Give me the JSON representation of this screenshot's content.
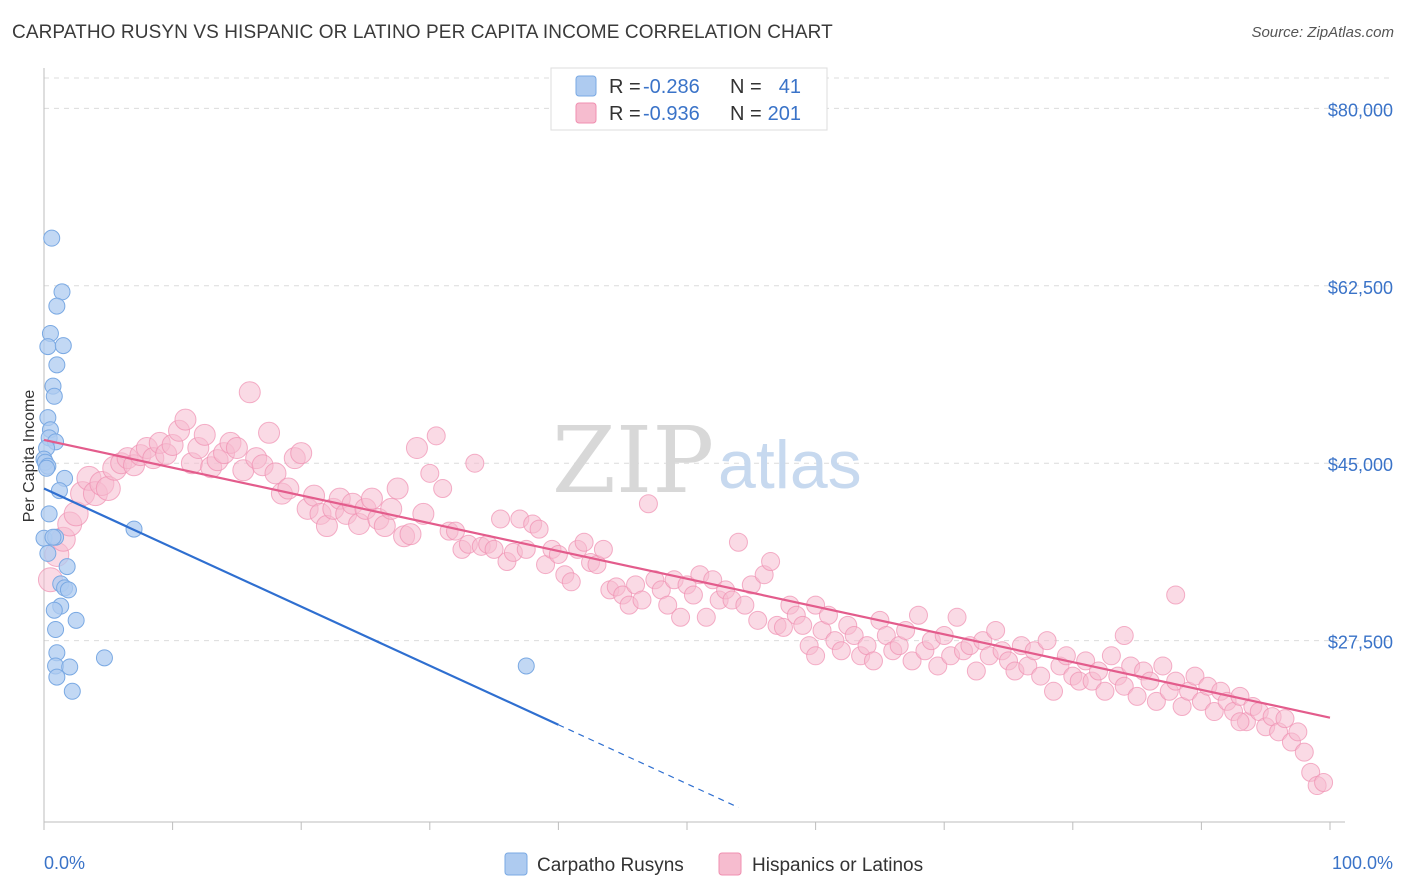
{
  "header": {
    "title": "CARPATHO RUSYN VS HISPANIC OR LATINO PER CAPITA INCOME CORRELATION CHART",
    "source": "Source: ZipAtlas.com"
  },
  "watermark": {
    "zip": "ZIP",
    "atlas": "atlas"
  },
  "legend": {
    "rows": [
      {
        "r_label": "R =",
        "r_value": "-0.286",
        "n_label": "N =",
        "n_value": "41",
        "color": "#aecbf0"
      },
      {
        "r_label": "R =",
        "r_value": "-0.936",
        "n_label": "N =",
        "n_value": "201",
        "color": "#f6bccf"
      }
    ]
  },
  "bottom_legend": [
    {
      "label": "Carpatho Rusyns",
      "color": "#aecbf0"
    },
    {
      "label": "Hispanics or Latinos",
      "color": "#f6bccf"
    }
  ],
  "chart_data": {
    "type": "scatter",
    "xlabel": "",
    "ylabel": "Per Capita Income",
    "xlim": [
      0,
      100
    ],
    "ylim": [
      10000,
      83000
    ],
    "x_tick_labels": [
      "0.0%",
      "100.0%"
    ],
    "y_ticks": [
      {
        "value": 80000,
        "label": "$80,000"
      },
      {
        "value": 62500,
        "label": "$62,500"
      },
      {
        "value": 45000,
        "label": "$45,000"
      },
      {
        "value": 27500,
        "label": "$27,500"
      }
    ],
    "grid": true,
    "series": [
      {
        "name": "Carpatho Rusyns",
        "color": "#7aa9e3",
        "fill": "#aecbf0",
        "trend_color": "#2f6fd0",
        "trend": {
          "x0": 0,
          "y0": 42500,
          "x1": 40,
          "y1": 19200,
          "dash_to_x": 54
        },
        "points": [
          [
            0.6,
            67200
          ],
          [
            1.4,
            61900
          ],
          [
            1.0,
            60500
          ],
          [
            0.5,
            57800
          ],
          [
            0.3,
            56500
          ],
          [
            1.5,
            56600
          ],
          [
            1.0,
            54700
          ],
          [
            0.7,
            52600
          ],
          [
            0.8,
            51600
          ],
          [
            0.3,
            49500
          ],
          [
            0.5,
            48300
          ],
          [
            0.4,
            47500
          ],
          [
            0.9,
            47100
          ],
          [
            0.2,
            46500
          ],
          [
            0.0,
            45400
          ],
          [
            0.1,
            45100
          ],
          [
            0.3,
            44700
          ],
          [
            0.2,
            44500
          ],
          [
            1.6,
            43500
          ],
          [
            1.2,
            42300
          ],
          [
            0.0,
            37600
          ],
          [
            0.9,
            37700
          ],
          [
            0.7,
            37700
          ],
          [
            0.3,
            36100
          ],
          [
            1.8,
            34800
          ],
          [
            1.3,
            33100
          ],
          [
            1.6,
            32700
          ],
          [
            1.9,
            32500
          ],
          [
            1.3,
            30900
          ],
          [
            0.8,
            30500
          ],
          [
            2.5,
            29500
          ],
          [
            0.9,
            28600
          ],
          [
            1.0,
            26300
          ],
          [
            0.9,
            25000
          ],
          [
            2.0,
            24900
          ],
          [
            1.0,
            23900
          ],
          [
            2.2,
            22500
          ],
          [
            4.7,
            25800
          ],
          [
            7.0,
            38500
          ],
          [
            37.5,
            25000
          ],
          [
            0.4,
            40000
          ]
        ]
      },
      {
        "name": "Hispanics or Latinos",
        "color": "#f08fb0",
        "fill": "#f6bccf",
        "trend_color": "#e35c8c",
        "trend": {
          "x0": 0,
          "y0": 47300,
          "x1": 100,
          "y1": 19900
        },
        "points": [
          [
            0.5,
            33500
          ],
          [
            1.0,
            36000
          ],
          [
            1.5,
            37500
          ],
          [
            2.0,
            39000
          ],
          [
            2.5,
            40000
          ],
          [
            3.0,
            42000
          ],
          [
            3.5,
            43500
          ],
          [
            4.0,
            42000
          ],
          [
            4.5,
            43000
          ],
          [
            5.0,
            42500
          ],
          [
            5.5,
            44500
          ],
          [
            6.0,
            45000
          ],
          [
            6.5,
            45500
          ],
          [
            7.0,
            44800
          ],
          [
            7.5,
            45800
          ],
          [
            8.0,
            46500
          ],
          [
            8.5,
            45500
          ],
          [
            9.0,
            47000
          ],
          [
            9.5,
            45900
          ],
          [
            10.0,
            46800
          ],
          [
            10.5,
            48200
          ],
          [
            11.0,
            49300
          ],
          [
            11.5,
            45000
          ],
          [
            12.0,
            46500
          ],
          [
            12.5,
            47800
          ],
          [
            13.0,
            44600
          ],
          [
            13.5,
            45300
          ],
          [
            14.0,
            46000
          ],
          [
            14.5,
            47000
          ],
          [
            15.0,
            46500
          ],
          [
            15.5,
            44300
          ],
          [
            16.0,
            52000
          ],
          [
            16.5,
            45500
          ],
          [
            17.0,
            44800
          ],
          [
            17.5,
            48000
          ],
          [
            18.0,
            44000
          ],
          [
            18.5,
            42000
          ],
          [
            19.0,
            42500
          ],
          [
            19.5,
            45500
          ],
          [
            20.0,
            46000
          ],
          [
            20.5,
            40500
          ],
          [
            21.0,
            41800
          ],
          [
            21.5,
            40000
          ],
          [
            22.0,
            38800
          ],
          [
            22.5,
            40500
          ],
          [
            23.0,
            41500
          ],
          [
            23.5,
            40000
          ],
          [
            24.0,
            41000
          ],
          [
            24.5,
            39000
          ],
          [
            25.0,
            40500
          ],
          [
            25.5,
            41500
          ],
          [
            26.0,
            39500
          ],
          [
            26.5,
            38800
          ],
          [
            27.0,
            40500
          ],
          [
            27.5,
            42500
          ],
          [
            28.0,
            37800
          ],
          [
            28.5,
            38000
          ],
          [
            29.0,
            46500
          ],
          [
            29.5,
            40000
          ],
          [
            30.0,
            44000
          ],
          [
            30.5,
            47700
          ],
          [
            31.0,
            42500
          ],
          [
            31.5,
            38300
          ],
          [
            32.0,
            38300
          ],
          [
            32.5,
            36500
          ],
          [
            33.0,
            37000
          ],
          [
            33.5,
            45000
          ],
          [
            34.0,
            36800
          ],
          [
            34.5,
            37000
          ],
          [
            35.0,
            36500
          ],
          [
            35.5,
            39500
          ],
          [
            36.0,
            35300
          ],
          [
            36.5,
            36200
          ],
          [
            37.0,
            39500
          ],
          [
            37.5,
            36500
          ],
          [
            38.0,
            39000
          ],
          [
            38.5,
            38500
          ],
          [
            39.0,
            35000
          ],
          [
            39.5,
            36500
          ],
          [
            40.0,
            36000
          ],
          [
            40.5,
            34000
          ],
          [
            41.0,
            33300
          ],
          [
            41.5,
            36500
          ],
          [
            42.0,
            37200
          ],
          [
            42.5,
            35200
          ],
          [
            43.0,
            35000
          ],
          [
            43.5,
            36500
          ],
          [
            44.0,
            32500
          ],
          [
            44.5,
            32800
          ],
          [
            45.0,
            32000
          ],
          [
            45.5,
            31000
          ],
          [
            46.0,
            33000
          ],
          [
            46.5,
            31500
          ],
          [
            47.0,
            41000
          ],
          [
            47.5,
            33500
          ],
          [
            48.0,
            32500
          ],
          [
            48.5,
            31000
          ],
          [
            49.0,
            33500
          ],
          [
            49.5,
            29800
          ],
          [
            50.0,
            33000
          ],
          [
            50.5,
            32000
          ],
          [
            51.0,
            34000
          ],
          [
            51.5,
            29800
          ],
          [
            52.0,
            33500
          ],
          [
            52.5,
            31500
          ],
          [
            53.0,
            32500
          ],
          [
            53.5,
            31500
          ],
          [
            54.0,
            37200
          ],
          [
            54.5,
            31000
          ],
          [
            55.0,
            33000
          ],
          [
            55.5,
            29500
          ],
          [
            56.0,
            34000
          ],
          [
            56.5,
            35300
          ],
          [
            57.0,
            29000
          ],
          [
            57.5,
            28800
          ],
          [
            58.0,
            31000
          ],
          [
            58.5,
            30000
          ],
          [
            59.0,
            29000
          ],
          [
            59.5,
            27000
          ],
          [
            60.0,
            31000
          ],
          [
            60.5,
            28500
          ],
          [
            61.0,
            30000
          ],
          [
            61.5,
            27500
          ],
          [
            62.0,
            26500
          ],
          [
            62.5,
            29000
          ],
          [
            63.0,
            28000
          ],
          [
            63.5,
            26000
          ],
          [
            64.0,
            27000
          ],
          [
            64.5,
            25500
          ],
          [
            65.0,
            29500
          ],
          [
            65.5,
            28000
          ],
          [
            66.0,
            26500
          ],
          [
            66.5,
            27000
          ],
          [
            67.0,
            28500
          ],
          [
            67.5,
            25500
          ],
          [
            68.0,
            30000
          ],
          [
            68.5,
            26500
          ],
          [
            69.0,
            27500
          ],
          [
            69.5,
            25000
          ],
          [
            70.0,
            28000
          ],
          [
            70.5,
            26000
          ],
          [
            71.0,
            29800
          ],
          [
            71.5,
            26500
          ],
          [
            72.0,
            27000
          ],
          [
            72.5,
            24500
          ],
          [
            73.0,
            27500
          ],
          [
            73.5,
            26000
          ],
          [
            74.0,
            28500
          ],
          [
            74.5,
            26500
          ],
          [
            75.0,
            25500
          ],
          [
            75.5,
            24500
          ],
          [
            76.0,
            27000
          ],
          [
            76.5,
            25000
          ],
          [
            77.0,
            26500
          ],
          [
            77.5,
            24000
          ],
          [
            78.0,
            27500
          ],
          [
            78.5,
            22500
          ],
          [
            79.0,
            25000
          ],
          [
            79.5,
            26000
          ],
          [
            80.0,
            24000
          ],
          [
            80.5,
            23500
          ],
          [
            81.0,
            25500
          ],
          [
            81.5,
            23500
          ],
          [
            82.0,
            24500
          ],
          [
            82.5,
            22500
          ],
          [
            83.0,
            26000
          ],
          [
            83.5,
            24000
          ],
          [
            84.0,
            23000
          ],
          [
            84.5,
            25000
          ],
          [
            85.0,
            22000
          ],
          [
            85.5,
            24500
          ],
          [
            86.0,
            23500
          ],
          [
            86.5,
            21500
          ],
          [
            87.0,
            25000
          ],
          [
            87.5,
            22500
          ],
          [
            88.0,
            23500
          ],
          [
            88.5,
            21000
          ],
          [
            89.0,
            22500
          ],
          [
            89.5,
            24000
          ],
          [
            90.0,
            21500
          ],
          [
            90.5,
            23000
          ],
          [
            91.0,
            20500
          ],
          [
            91.5,
            22500
          ],
          [
            92.0,
            21500
          ],
          [
            92.5,
            20500
          ],
          [
            93.0,
            22000
          ],
          [
            93.5,
            19500
          ],
          [
            94.0,
            21000
          ],
          [
            94.5,
            20500
          ],
          [
            95.0,
            19000
          ],
          [
            95.5,
            20000
          ],
          [
            96.0,
            18500
          ],
          [
            96.5,
            19800
          ],
          [
            97.0,
            17500
          ],
          [
            97.5,
            18500
          ],
          [
            98.0,
            16500
          ],
          [
            98.5,
            14500
          ],
          [
            99.0,
            13200
          ],
          [
            99.5,
            13500
          ],
          [
            88.0,
            32000
          ],
          [
            60.0,
            26000
          ],
          [
            84.0,
            28000
          ],
          [
            93.0,
            19500
          ]
        ]
      }
    ]
  }
}
